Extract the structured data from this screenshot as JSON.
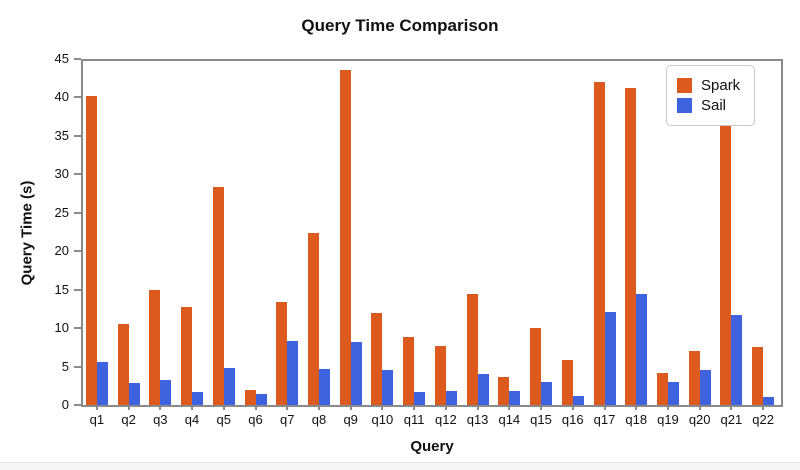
{
  "chart_data": {
    "type": "bar",
    "title": "Query Time Comparison",
    "xlabel": "Query",
    "ylabel": "Query Time (s)",
    "categories": [
      "q1",
      "q2",
      "q3",
      "q4",
      "q5",
      "q6",
      "q7",
      "q8",
      "q9",
      "q10",
      "q11",
      "q12",
      "q13",
      "q14",
      "q15",
      "q16",
      "q17",
      "q18",
      "q19",
      "q20",
      "q21",
      "q22"
    ],
    "series": [
      {
        "name": "Spark",
        "color": "#DC5A1E",
        "values": [
          40.2,
          10.5,
          15.0,
          12.8,
          28.3,
          1.9,
          13.4,
          22.4,
          43.6,
          12.0,
          8.8,
          7.7,
          14.4,
          3.6,
          10.0,
          5.9,
          42.0,
          41.2,
          4.1,
          7.0,
          37.2,
          7.6
        ]
      },
      {
        "name": "Sail",
        "color": "#3F63DE",
        "values": [
          5.6,
          2.8,
          3.2,
          1.7,
          4.8,
          1.4,
          8.3,
          4.7,
          8.2,
          4.5,
          1.7,
          1.8,
          4.0,
          1.8,
          3.0,
          1.2,
          12.1,
          14.4,
          3.0,
          4.5,
          11.7,
          1.0
        ]
      }
    ],
    "ylim": [
      0,
      45
    ],
    "ytick_step": 5,
    "grid": "off",
    "legend_position": "top-right",
    "axis_color": "#8a8a8a"
  }
}
